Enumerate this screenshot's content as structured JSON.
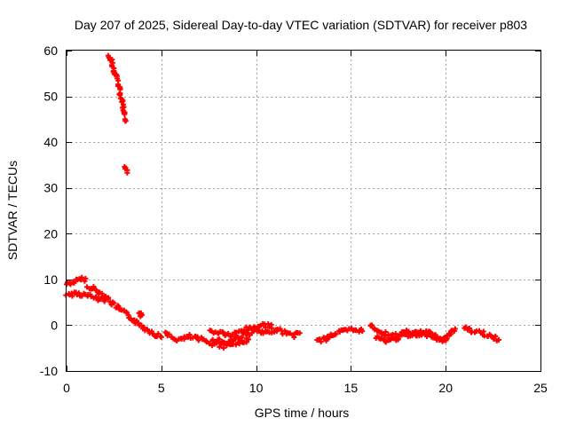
{
  "chart_data": {
    "type": "scatter",
    "title": "Day 207 of 2025, Sidereal Day-to-day VTEC variation (SDTVAR) for receiver p803",
    "xlabel": "GPS time / hours",
    "ylabel": "SDTVAR / TECUs",
    "xlim": [
      0,
      25
    ],
    "ylim": [
      -10,
      60
    ],
    "xticks": [
      0,
      5,
      10,
      15,
      20,
      25
    ],
    "yticks": [
      -10,
      0,
      10,
      20,
      30,
      40,
      50,
      60
    ],
    "xtick_labels": [
      "0",
      "5",
      "10",
      "15",
      "20",
      "25"
    ],
    "ytick_labels": [
      "-10",
      "0",
      "10",
      "20",
      "30",
      "40",
      "50",
      "60"
    ],
    "grid": true,
    "marker": "plus",
    "marker_color": "#ff0000",
    "series": [
      {
        "name": "SDTVAR",
        "segments": [
          [
            [
              0.0,
              9.0
            ],
            [
              0.5,
              9.6
            ],
            [
              1.0,
              10.2
            ]
          ],
          [
            [
              0.0,
              6.5
            ],
            [
              0.5,
              7.0
            ],
            [
              1.0,
              6.6
            ],
            [
              1.5,
              6.0
            ],
            [
              2.0,
              5.2
            ]
          ],
          [
            [
              1.1,
              8.6
            ],
            [
              1.5,
              7.8
            ],
            [
              2.0,
              6.5
            ],
            [
              2.4,
              4.8
            ],
            [
              2.8,
              3.5
            ],
            [
              3.2,
              2.3
            ],
            [
              3.6,
              1.0
            ],
            [
              4.1,
              -0.6
            ],
            [
              4.6,
              -1.8
            ],
            [
              5.0,
              -2.6
            ]
          ],
          [
            [
              3.9,
              2.5
            ]
          ],
          [
            [
              5.2,
              -1.9
            ],
            [
              5.5,
              -2.6
            ],
            [
              6.0,
              -3.2
            ],
            [
              6.5,
              -2.5
            ],
            [
              7.0,
              -3.1
            ],
            [
              7.5,
              -3.6
            ],
            [
              8.0,
              -3.3
            ],
            [
              8.5,
              -3.9
            ],
            [
              9.0,
              -2.6
            ],
            [
              9.5,
              -2.0
            ],
            [
              10.0,
              -1.2
            ],
            [
              10.5,
              -1.9
            ],
            [
              11.0,
              -0.8
            ],
            [
              11.5,
              -1.6
            ],
            [
              12.0,
              -2.2
            ],
            [
              12.3,
              -1.7
            ]
          ],
          [
            [
              7.6,
              -1.3
            ],
            [
              8.2,
              -1.7
            ],
            [
              8.7,
              -2.3
            ],
            [
              9.3,
              -1.0
            ],
            [
              10.1,
              -0.2
            ],
            [
              10.8,
              0.1
            ]
          ],
          [
            [
              7.7,
              -4.2
            ],
            [
              8.3,
              -4.5
            ],
            [
              9.0,
              -4.0
            ],
            [
              9.6,
              -3.1
            ]
          ],
          [
            [
              13.2,
              -3.4
            ],
            [
              13.6,
              -3.1
            ],
            [
              14.0,
              -2.0
            ],
            [
              14.5,
              -1.4
            ],
            [
              15.0,
              -1.1
            ],
            [
              15.4,
              -1.0
            ],
            [
              15.6,
              -1.3
            ]
          ],
          [
            [
              16.0,
              0.0
            ],
            [
              16.5,
              -1.2
            ],
            [
              17.0,
              -2.5
            ],
            [
              17.5,
              -2.1
            ],
            [
              18.0,
              -1.5
            ],
            [
              18.5,
              -1.8
            ],
            [
              19.0,
              -1.6
            ],
            [
              19.5,
              -2.6
            ],
            [
              20.0,
              -2.9
            ],
            [
              20.5,
              -0.8
            ]
          ],
          [
            [
              16.3,
              -2.6
            ],
            [
              16.8,
              -3.5
            ],
            [
              17.3,
              -3.0
            ],
            [
              17.8,
              -2.2
            ],
            [
              18.5,
              -2.3
            ],
            [
              19.2,
              -1.9
            ],
            [
              19.8,
              -3.4
            ],
            [
              20.2,
              -2.1
            ]
          ],
          [
            [
              21.0,
              -0.6
            ],
            [
              21.5,
              -1.4
            ],
            [
              22.0,
              -1.8
            ],
            [
              22.4,
              -2.4
            ],
            [
              22.8,
              -3.2
            ]
          ],
          [
            [
              2.2,
              59.2
            ],
            [
              2.45,
              56.6
            ],
            [
              2.7,
              53.0
            ],
            [
              2.95,
              48.8
            ],
            [
              3.1,
              44.6
            ]
          ],
          [
            [
              3.1,
              34.6
            ],
            [
              3.2,
              33.3
            ]
          ]
        ]
      }
    ]
  }
}
